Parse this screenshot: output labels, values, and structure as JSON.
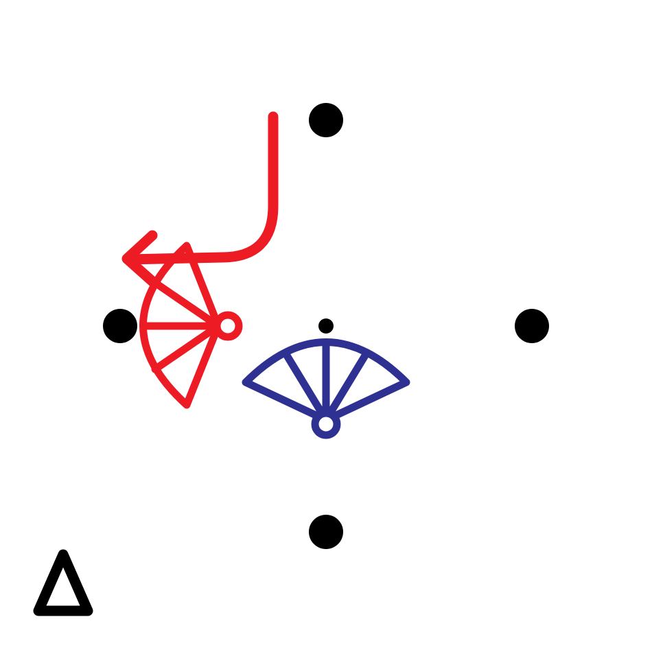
{
  "diagram": {
    "colors": {
      "background": "#ffffff",
      "ink": "#000000",
      "red_figure": "#ED1C24",
      "blue_figure": "#2E3192"
    },
    "markers": [
      {
        "name": "top-dot",
        "kind": "large-dot"
      },
      {
        "name": "left-dot",
        "kind": "large-dot"
      },
      {
        "name": "right-dot",
        "kind": "large-dot"
      },
      {
        "name": "bottom-dot",
        "kind": "large-dot"
      },
      {
        "name": "center-dot",
        "kind": "small-dot"
      }
    ],
    "figures": [
      {
        "name": "red-fan",
        "color": "red",
        "orientation": "facing-left",
        "has_path_arrow": true
      },
      {
        "name": "blue-fan",
        "color": "blue",
        "orientation": "facing-up",
        "has_path_arrow": false
      }
    ],
    "corner_symbol": {
      "name": "delta-symbol",
      "shape": "triangle-outline",
      "color": "black"
    }
  }
}
